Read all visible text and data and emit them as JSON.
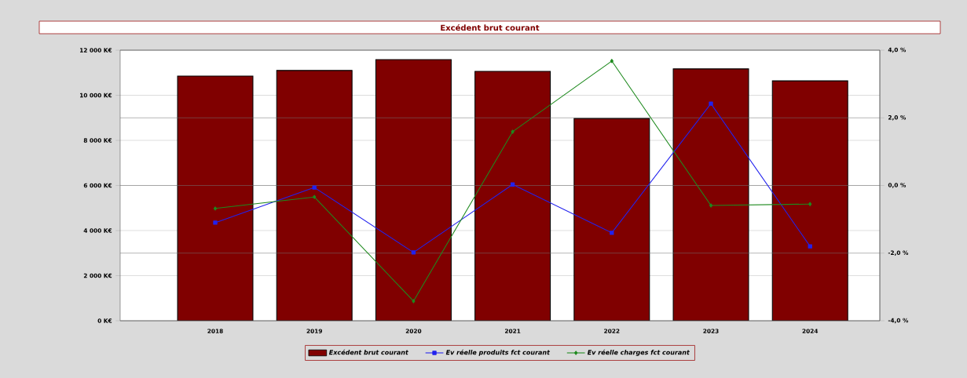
{
  "chart_data": {
    "type": "bar",
    "title": "Excédent brut courant",
    "categories": [
      "2018",
      "2019",
      "2020",
      "2021",
      "2022",
      "2023",
      "2024"
    ],
    "series": [
      {
        "name": "Excédent brut courant",
        "color": "#800000",
        "values": [
          10850,
          11100,
          11580,
          11060,
          8970,
          11170,
          10640
        ]
      },
      {
        "name": "Ev réelle produits fct courant",
        "type": "line",
        "axis": "y2",
        "marker": "square",
        "color": "#2222ee",
        "values": [
          -1.1,
          -0.06,
          -1.98,
          0.03,
          -1.4,
          2.42,
          -1.8
        ]
      },
      {
        "name": "Ev réelle charges fct courant",
        "type": "line",
        "axis": "y2",
        "marker": "diamond",
        "color": "#1e8a1e",
        "values": [
          -0.68,
          -0.34,
          -3.42,
          1.59,
          3.68,
          -0.59,
          -0.55
        ]
      }
    ],
    "ylim": [
      0,
      12000
    ],
    "yticks": [
      {
        "value": 0,
        "label": "0 K€"
      },
      {
        "value": 2000,
        "label": "2 000 K€"
      },
      {
        "value": 4000,
        "label": "4 000 K€"
      },
      {
        "value": 6000,
        "label": "6 000 K€"
      },
      {
        "value": 8000,
        "label": "8 000 K€"
      },
      {
        "value": 10000,
        "label": "10 000 K€"
      },
      {
        "value": 12000,
        "label": "12 000 K€"
      }
    ],
    "y2lim": [
      -4,
      4
    ],
    "y2ticks": [
      {
        "value": -4,
        "label": "-4,0 %"
      },
      {
        "value": -2,
        "label": "-2,0 %"
      },
      {
        "value": 0,
        "label": "0,0 %"
      },
      {
        "value": 2,
        "label": "2,0 %"
      },
      {
        "value": 4,
        "label": "4,0 %"
      }
    ],
    "grid": true,
    "legend": "bottom"
  }
}
